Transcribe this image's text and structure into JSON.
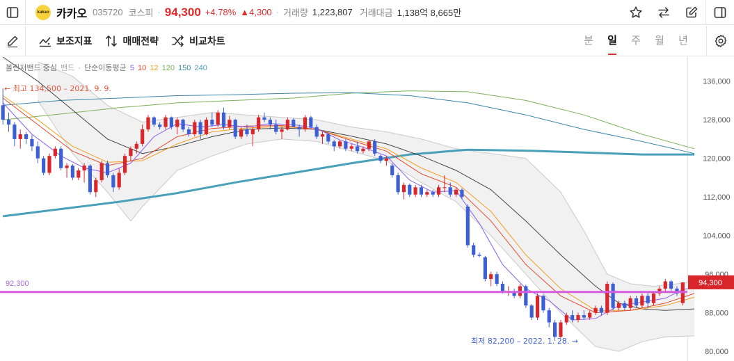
{
  "header": {
    "logo_text": "kakao",
    "name": "카카오",
    "code": "035720",
    "market": "코스피",
    "separator": "·",
    "price": "94,300",
    "change_pct": "+4.78%",
    "change_amt": "▲4,300",
    "volume_label": "거래량",
    "volume": "1,223,807",
    "amount_label": "거래대금",
    "amount": "1,138억 8,665만"
  },
  "toolbar": {
    "indicators": "보조지표",
    "strategy": "매매전략",
    "compare": "비교차트",
    "periods": [
      "분",
      "일",
      "주",
      "월",
      "년"
    ],
    "active_period": "일"
  },
  "legend": {
    "bollinger": "볼린저밴드 중심",
    "band": "밴드",
    "dot": "·",
    "sma": "단순이동평균",
    "ma": [
      "5",
      "10",
      "12",
      "120",
      "150",
      "240"
    ],
    "ma_colors": [
      "#8a5cf5",
      "#e34a2f",
      "#f0a020",
      "#7cb15a",
      "#3a86a8",
      "#4aa0b8"
    ]
  },
  "chart_data": {
    "type": "candlestick",
    "y_ticks": [
      "136,000",
      "128,000",
      "120,000",
      "112,000",
      "104,000",
      "96,000",
      "88,000",
      "80,000"
    ],
    "y_values": [
      136000,
      128000,
      120000,
      112000,
      104000,
      96000,
      88000,
      80000
    ],
    "ylim": [
      78000,
      141000
    ],
    "high_annotation": "최고 134,500 – 2021. 9. 9.",
    "low_annotation": "최저 82,200 – 2022. 1. 28.",
    "hline_value": 92300,
    "hline_label": "92,300",
    "current_price_label": "94,300",
    "up_color": "#d9262b",
    "down_color": "#3c5fd6",
    "candles": [
      [
        131000,
        134500,
        127000,
        128000
      ],
      [
        128000,
        129500,
        125500,
        127000
      ],
      [
        127000,
        127500,
        122500,
        124000
      ],
      [
        124000,
        126000,
        122000,
        125000
      ],
      [
        125000,
        125500,
        123000,
        124000
      ],
      [
        124000,
        124800,
        121500,
        122500
      ],
      [
        122500,
        123500,
        119000,
        120000
      ],
      [
        120000,
        120500,
        116500,
        117000
      ],
      [
        117000,
        121000,
        116500,
        120500
      ],
      [
        120500,
        122500,
        120000,
        122000
      ],
      [
        122000,
        122500,
        117500,
        118000
      ],
      [
        118000,
        119000,
        116000,
        118500
      ],
      [
        118500,
        118800,
        115500,
        116000
      ],
      [
        116000,
        118000,
        115500,
        117500
      ],
      [
        117500,
        119000,
        115000,
        118500
      ],
      [
        118500,
        118800,
        112500,
        113000
      ],
      [
        113000,
        116000,
        112000,
        115500
      ],
      [
        115500,
        119500,
        115000,
        119000
      ],
      [
        119000,
        119500,
        116000,
        116500
      ],
      [
        116500,
        117000,
        113000,
        114000
      ],
      [
        114000,
        118000,
        113500,
        117000
      ],
      [
        117000,
        121000,
        116500,
        120500
      ],
      [
        120500,
        122500,
        119500,
        122000
      ],
      [
        122000,
        123500,
        121000,
        123000
      ],
      [
        123000,
        127000,
        122500,
        126000
      ],
      [
        126000,
        129000,
        125500,
        128500
      ],
      [
        128500,
        128700,
        126500,
        127000
      ],
      [
        127000,
        127500,
        126000,
        126500
      ],
      [
        126500,
        129000,
        126000,
        128500
      ],
      [
        128500,
        128700,
        126000,
        126500
      ],
      [
        126500,
        128500,
        125000,
        128000
      ],
      [
        128000,
        128200,
        125500,
        126000
      ],
      [
        126000,
        126500,
        124500,
        125000
      ],
      [
        125000,
        128000,
        124500,
        127500
      ],
      [
        127500,
        128000,
        124000,
        125000
      ],
      [
        125000,
        128500,
        124800,
        128000
      ],
      [
        128000,
        129500,
        126500,
        127000
      ],
      [
        127000,
        130000,
        126500,
        129500
      ],
      [
        129500,
        130500,
        126000,
        126500
      ],
      [
        126500,
        128800,
        126000,
        128000
      ],
      [
        128000,
        128200,
        124000,
        124500
      ],
      [
        124500,
        126500,
        124000,
        126000
      ],
      [
        126000,
        127000,
        124500,
        125000
      ],
      [
        125000,
        126500,
        122500,
        126000
      ],
      [
        126000,
        129000,
        125500,
        128500
      ],
      [
        128500,
        129500,
        127500,
        128000
      ],
      [
        128000,
        128500,
        126000,
        127000
      ],
      [
        127000,
        128000,
        125000,
        125500
      ],
      [
        125500,
        126500,
        124000,
        126000
      ],
      [
        126000,
        128500,
        125800,
        128000
      ],
      [
        128000,
        128300,
        126500,
        126500
      ],
      [
        126500,
        127000,
        124500,
        126000
      ],
      [
        126000,
        129000,
        125500,
        128500
      ],
      [
        128500,
        128800,
        126000,
        126500
      ],
      [
        126500,
        127000,
        124000,
        124500
      ],
      [
        124500,
        125500,
        123000,
        125000
      ],
      [
        125000,
        125500,
        123000,
        123500
      ],
      [
        123500,
        123800,
        121500,
        122500
      ],
      [
        122500,
        123800,
        122000,
        123500
      ],
      [
        123500,
        124000,
        121500,
        122000
      ],
      [
        122000,
        123000,
        121500,
        122500
      ],
      [
        122500,
        123500,
        121000,
        121500
      ],
      [
        121500,
        122500,
        121000,
        122000
      ],
      [
        122000,
        123800,
        121500,
        123500
      ],
      [
        123500,
        124000,
        120500,
        121000
      ],
      [
        120500,
        120800,
        119000,
        119500
      ],
      [
        119500,
        120500,
        118500,
        120000
      ],
      [
        118500,
        119000,
        116000,
        116500
      ],
      [
        116500,
        117000,
        112500,
        113000
      ],
      [
        113000,
        115000,
        111500,
        114500
      ],
      [
        114500,
        114800,
        112000,
        112500
      ],
      [
        112500,
        114500,
        112000,
        114000
      ],
      [
        114000,
        114500,
        112000,
        112500
      ],
      [
        112500,
        113500,
        112000,
        113000
      ],
      [
        113000,
        113500,
        112000,
        112500
      ],
      [
        112500,
        114500,
        112000,
        114000
      ],
      [
        114000,
        116500,
        113000,
        114000
      ],
      [
        114000,
        115000,
        112000,
        112500
      ],
      [
        112500,
        114000,
        112000,
        113500
      ],
      [
        113500,
        113800,
        111500,
        112000
      ],
      [
        110000,
        110500,
        101500,
        102000
      ],
      [
        102000,
        102500,
        99500,
        100000
      ],
      [
        100000,
        100500,
        99500,
        99800
      ],
      [
        99500,
        99800,
        94500,
        95000
      ],
      [
        95000,
        96500,
        93500,
        96000
      ],
      [
        96000,
        96500,
        93500,
        94000
      ],
      [
        94000,
        94500,
        92000,
        92500
      ],
      [
        92500,
        93500,
        91500,
        92500
      ],
      [
        92500,
        93000,
        91000,
        91500
      ],
      [
        91500,
        94000,
        91000,
        93500
      ],
      [
        93500,
        93800,
        89000,
        89500
      ],
      [
        89500,
        89800,
        86500,
        87000
      ],
      [
        87000,
        92000,
        86500,
        91500
      ],
      [
        91500,
        91800,
        88000,
        88500
      ],
      [
        88500,
        89000,
        85000,
        86000
      ],
      [
        86000,
        86500,
        82200,
        83000
      ],
      [
        83000,
        86500,
        82800,
        86000
      ],
      [
        86000,
        88000,
        85500,
        87500
      ],
      [
        87500,
        88500,
        86000,
        86500
      ],
      [
        86500,
        88000,
        86000,
        87500
      ],
      [
        87500,
        88500,
        86500,
        87000
      ],
      [
        87000,
        88500,
        86500,
        88000
      ],
      [
        88000,
        89500,
        87500,
        89000
      ],
      [
        89000,
        89500,
        87500,
        88000
      ],
      [
        88000,
        94500,
        87500,
        94000
      ],
      [
        94000,
        94300,
        88500,
        89000
      ],
      [
        89000,
        90500,
        88500,
        90000
      ],
      [
        90000,
        90500,
        88500,
        89000
      ],
      [
        89000,
        91500,
        88500,
        91000
      ],
      [
        91000,
        91500,
        89000,
        89500
      ],
      [
        89500,
        92000,
        89000,
        91500
      ],
      [
        91500,
        92500,
        89000,
        90000
      ],
      [
        90000,
        92500,
        89500,
        92000
      ],
      [
        92000,
        93500,
        91500,
        93000
      ],
      [
        93000,
        95000,
        92500,
        94500
      ],
      [
        94500,
        94800,
        92500,
        93000
      ],
      [
        93000,
        93500,
        91500,
        92000
      ],
      [
        90000,
        94300,
        89500,
        94300
      ]
    ],
    "ma5": [
      [
        0,
        131500
      ],
      [
        5,
        125000
      ],
      [
        10,
        120500
      ],
      [
        14,
        118000
      ],
      [
        18,
        117000
      ],
      [
        22,
        119000
      ],
      [
        26,
        124500
      ],
      [
        30,
        127200
      ],
      [
        34,
        126500
      ],
      [
        38,
        127000
      ],
      [
        42,
        126500
      ],
      [
        46,
        127200
      ],
      [
        50,
        127000
      ],
      [
        54,
        126200
      ],
      [
        58,
        123800
      ],
      [
        62,
        122300
      ],
      [
        66,
        120500
      ],
      [
        70,
        115500
      ],
      [
        74,
        113000
      ],
      [
        78,
        113300
      ],
      [
        82,
        106500
      ],
      [
        86,
        98000
      ],
      [
        90,
        93000
      ],
      [
        94,
        90500
      ],
      [
        98,
        86500
      ],
      [
        102,
        86800
      ],
      [
        106,
        89500
      ],
      [
        110,
        90200
      ],
      [
        114,
        91000
      ],
      [
        117,
        92800
      ],
      [
        119,
        93200
      ]
    ],
    "ma10": [
      [
        0,
        132500
      ],
      [
        6,
        127000
      ],
      [
        12,
        121500
      ],
      [
        18,
        118500
      ],
      [
        24,
        120000
      ],
      [
        30,
        124500
      ],
      [
        36,
        126200
      ],
      [
        42,
        126700
      ],
      [
        48,
        126800
      ],
      [
        54,
        126000
      ],
      [
        60,
        123700
      ],
      [
        66,
        121500
      ],
      [
        72,
        116800
      ],
      [
        78,
        114000
      ],
      [
        84,
        107000
      ],
      [
        90,
        98000
      ],
      [
        96,
        91500
      ],
      [
        102,
        88000
      ],
      [
        108,
        88500
      ],
      [
        114,
        90000
      ],
      [
        119,
        92000
      ]
    ],
    "ma12": [
      [
        0,
        133000
      ],
      [
        6,
        128000
      ],
      [
        12,
        122500
      ],
      [
        18,
        119200
      ],
      [
        24,
        119500
      ],
      [
        30,
        123000
      ],
      [
        36,
        125500
      ],
      [
        42,
        126300
      ],
      [
        48,
        126600
      ],
      [
        54,
        126000
      ],
      [
        60,
        124000
      ],
      [
        66,
        122000
      ],
      [
        72,
        118000
      ],
      [
        78,
        115000
      ],
      [
        84,
        109000
      ],
      [
        90,
        100000
      ],
      [
        96,
        93000
      ],
      [
        102,
        88500
      ],
      [
        108,
        88500
      ],
      [
        114,
        89500
      ],
      [
        119,
        91200
      ]
    ],
    "bb_mid": [
      [
        0,
        141000
      ],
      [
        6,
        136000
      ],
      [
        12,
        130000
      ],
      [
        18,
        124000
      ],
      [
        24,
        121000
      ],
      [
        30,
        122500
      ],
      [
        36,
        124500
      ],
      [
        42,
        126000
      ],
      [
        48,
        126300
      ],
      [
        54,
        126000
      ],
      [
        60,
        124600
      ],
      [
        66,
        123000
      ],
      [
        72,
        120500
      ],
      [
        78,
        117500
      ],
      [
        84,
        113500
      ],
      [
        90,
        107000
      ],
      [
        96,
        100000
      ],
      [
        102,
        93500
      ],
      [
        106,
        90000
      ],
      [
        110,
        88800
      ],
      [
        114,
        88500
      ],
      [
        119,
        88800
      ]
    ],
    "bb_upper": [
      [
        6,
        140000
      ],
      [
        12,
        137000
      ],
      [
        18,
        131000
      ],
      [
        24,
        127500
      ],
      [
        30,
        128500
      ],
      [
        36,
        129500
      ],
      [
        42,
        129000
      ],
      [
        48,
        128500
      ],
      [
        54,
        128000
      ],
      [
        60,
        126500
      ],
      [
        66,
        125500
      ],
      [
        72,
        124000
      ],
      [
        78,
        122000
      ],
      [
        84,
        121000
      ],
      [
        90,
        120000
      ],
      [
        96,
        113000
      ],
      [
        100,
        105000
      ],
      [
        104,
        96000
      ],
      [
        108,
        94000
      ],
      [
        112,
        93500
      ],
      [
        116,
        94000
      ],
      [
        119,
        94500
      ]
    ],
    "bb_lower": [
      [
        6,
        132000
      ],
      [
        12,
        121000
      ],
      [
        18,
        113000
      ],
      [
        22,
        107000
      ],
      [
        24,
        110000
      ],
      [
        30,
        117500
      ],
      [
        36,
        120500
      ],
      [
        42,
        123000
      ],
      [
        48,
        124000
      ],
      [
        54,
        123500
      ],
      [
        60,
        121500
      ],
      [
        66,
        119500
      ],
      [
        72,
        115000
      ],
      [
        78,
        111000
      ],
      [
        84,
        104000
      ],
      [
        90,
        96000
      ],
      [
        96,
        88000
      ],
      [
        102,
        81000
      ],
      [
        106,
        80000
      ],
      [
        110,
        82000
      ],
      [
        114,
        83000
      ],
      [
        119,
        83200
      ]
    ],
    "ma120": [
      [
        0,
        128000
      ],
      [
        10,
        129200
      ],
      [
        20,
        130500
      ],
      [
        30,
        131500
      ],
      [
        40,
        132000
      ],
      [
        50,
        132500
      ],
      [
        60,
        133500
      ],
      [
        70,
        134000
      ],
      [
        80,
        133800
      ],
      [
        90,
        132000
      ],
      [
        100,
        129000
      ],
      [
        110,
        125000
      ],
      [
        119,
        122000
      ]
    ],
    "ma150": [
      [
        0,
        131000
      ],
      [
        10,
        132000
      ],
      [
        20,
        132500
      ],
      [
        30,
        133000
      ],
      [
        40,
        133200
      ],
      [
        50,
        133500
      ],
      [
        60,
        133600
      ],
      [
        70,
        133000
      ],
      [
        80,
        131500
      ],
      [
        90,
        129000
      ],
      [
        100,
        126000
      ],
      [
        110,
        123500
      ],
      [
        119,
        121000
      ]
    ],
    "ma240": [
      [
        0,
        108000
      ],
      [
        10,
        109500
      ],
      [
        20,
        111000
      ],
      [
        30,
        112800
      ],
      [
        40,
        115000
      ],
      [
        50,
        117000
      ],
      [
        60,
        119000
      ],
      [
        70,
        120800
      ],
      [
        80,
        121800
      ],
      [
        90,
        121600
      ],
      [
        100,
        121200
      ],
      [
        110,
        120800
      ],
      [
        119,
        120800
      ]
    ]
  }
}
